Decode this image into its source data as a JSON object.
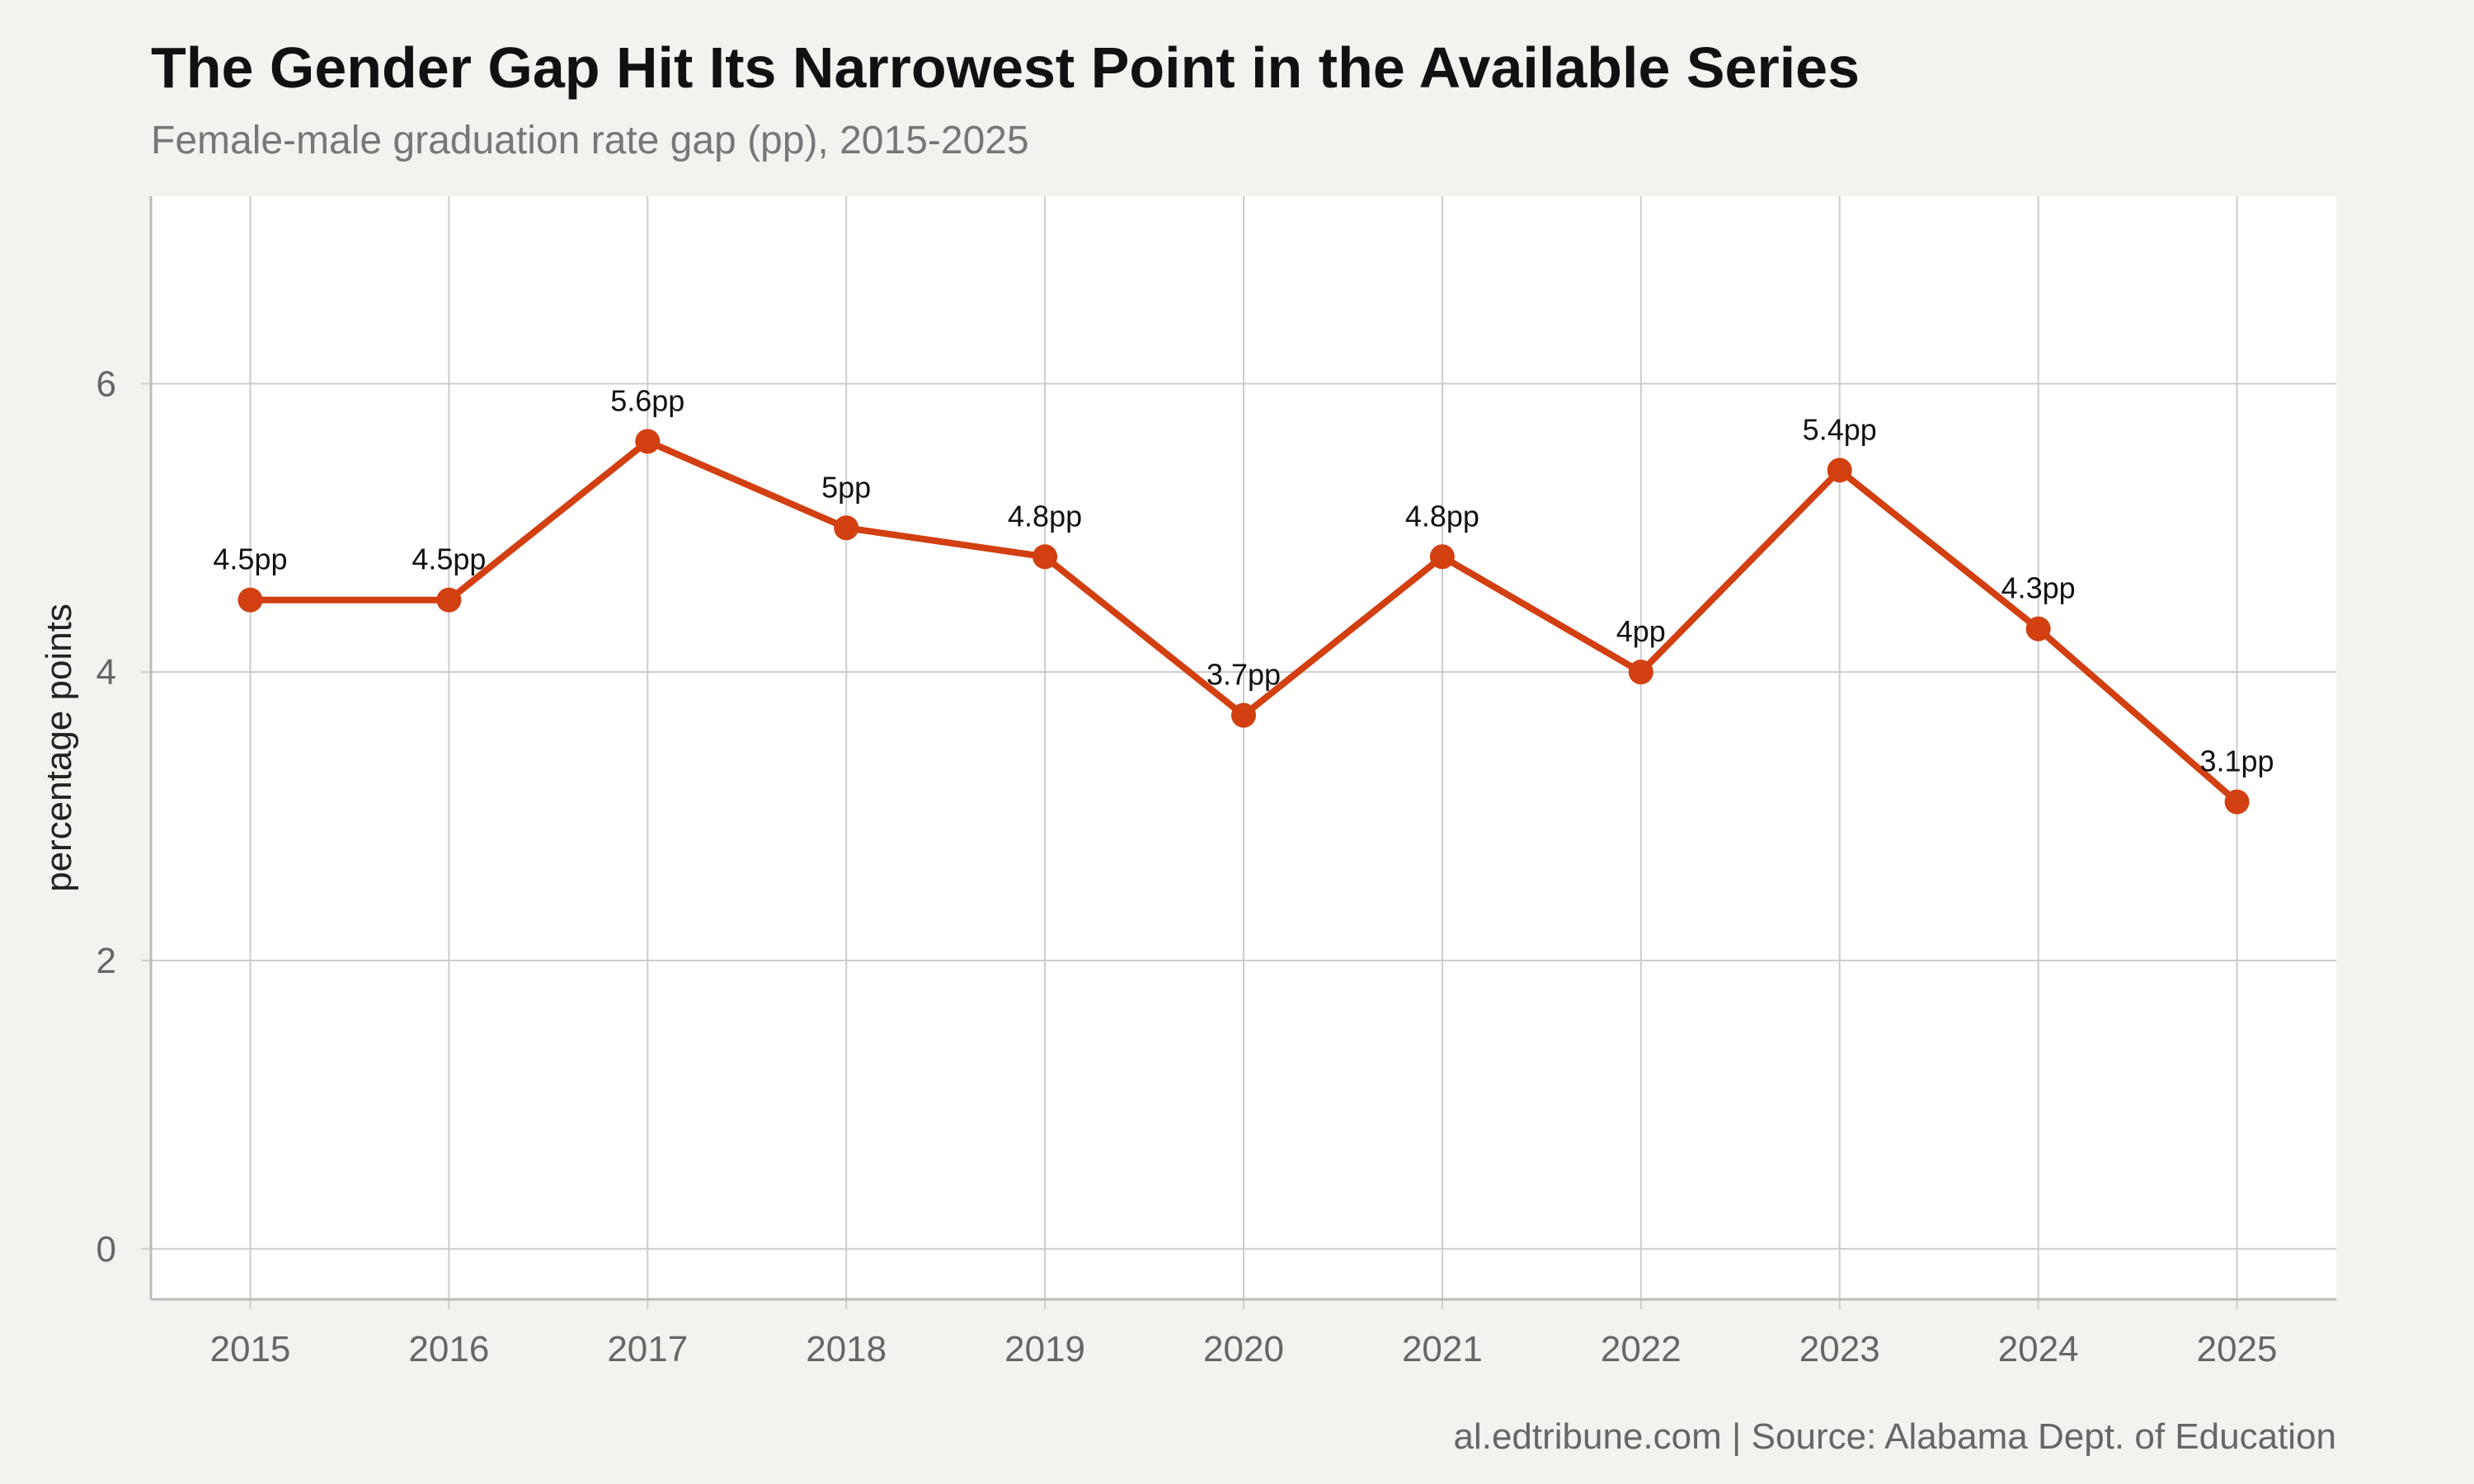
{
  "chart_data": {
    "type": "line",
    "title": "The Gender Gap Hit Its Narrowest Point in the Available Series",
    "subtitle": "Female-male graduation rate gap (pp), 2015-2025",
    "caption": "al.edtribune.com | Source: Alabama Dept. of Education",
    "xlabel": "",
    "ylabel": "percentage points",
    "x": [
      2015,
      2016,
      2017,
      2018,
      2019,
      2020,
      2021,
      2022,
      2023,
      2024,
      2025
    ],
    "values": [
      4.5,
      4.5,
      5.6,
      5.0,
      4.8,
      3.7,
      4.8,
      4.0,
      5.4,
      4.3,
      3.1
    ],
    "data_labels": [
      "4.5pp",
      "4.5pp",
      "5.6pp",
      "5pp",
      "4.8pp",
      "3.7pp",
      "4.8pp",
      "4pp",
      "5.4pp",
      "4.3pp",
      "3.1pp"
    ],
    "x_ticks": [
      "2015",
      "2016",
      "2017",
      "2018",
      "2019",
      "2020",
      "2021",
      "2022",
      "2023",
      "2024",
      "2025"
    ],
    "y_ticks": [
      0,
      2,
      4,
      6
    ],
    "ylim": [
      -0.35,
      7.3
    ],
    "xlim": [
      2014.5,
      2025.5
    ],
    "grid": true,
    "legend": "none",
    "colors": {
      "line": "#d23f11",
      "panel": "#ffffff",
      "background": "#f4f2ee",
      "grid": "#cccccc"
    }
  }
}
